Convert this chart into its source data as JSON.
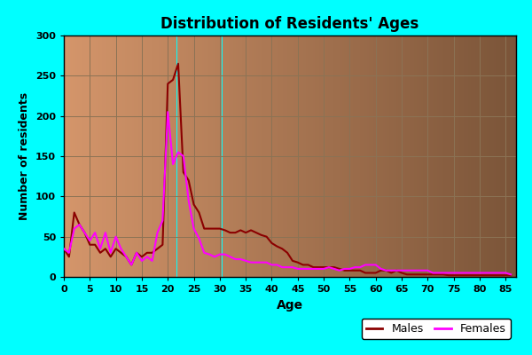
{
  "title": "Distribution of Residents' Ages",
  "xlabel": "Age",
  "ylabel": "Number of residents",
  "xlim": [
    0,
    87
  ],
  "ylim": [
    0,
    300
  ],
  "xticks": [
    0,
    5,
    10,
    15,
    20,
    25,
    30,
    35,
    40,
    45,
    50,
    55,
    60,
    65,
    70,
    75,
    80,
    85
  ],
  "yticks": [
    0,
    50,
    100,
    150,
    200,
    250,
    300
  ],
  "bg_outer": "#00FFFF",
  "bg_inner_left": "#D4956A",
  "bg_inner_right": "#7A5438",
  "grid_color": "#8B7355",
  "male_color": "#8B0000",
  "female_color": "#FF00FF",
  "legend_bg": "#FFFFFF",
  "males": [
    35,
    25,
    80,
    65,
    55,
    40,
    40,
    30,
    35,
    25,
    35,
    30,
    25,
    15,
    30,
    25,
    30,
    30,
    35,
    40,
    240,
    245,
    265,
    130,
    120,
    90,
    80,
    60,
    60,
    60,
    60,
    58,
    55,
    55,
    58,
    55,
    58,
    55,
    52,
    50,
    42,
    38,
    35,
    30,
    20,
    18,
    15,
    15,
    12,
    12,
    12,
    12,
    12,
    10,
    8,
    8,
    8,
    8,
    5,
    5,
    5,
    8,
    8,
    5,
    8,
    5,
    3,
    3,
    3,
    3,
    3,
    3,
    3,
    3,
    2,
    2,
    2,
    2,
    2,
    2,
    2,
    2,
    2,
    2,
    2,
    2,
    2
  ],
  "females": [
    35,
    30,
    60,
    65,
    55,
    45,
    55,
    35,
    55,
    30,
    50,
    35,
    25,
    15,
    30,
    20,
    25,
    20,
    55,
    70,
    205,
    140,
    155,
    150,
    95,
    60,
    48,
    30,
    28,
    25,
    28,
    28,
    25,
    22,
    22,
    20,
    18,
    18,
    18,
    18,
    15,
    15,
    12,
    12,
    12,
    10,
    10,
    10,
    10,
    10,
    10,
    12,
    10,
    8,
    10,
    10,
    12,
    12,
    15,
    15,
    15,
    10,
    8,
    8,
    8,
    8,
    8,
    8,
    8,
    8,
    8,
    5,
    5,
    5,
    5,
    5,
    5,
    5,
    5,
    5,
    5,
    5,
    5,
    5,
    5,
    5,
    3
  ]
}
